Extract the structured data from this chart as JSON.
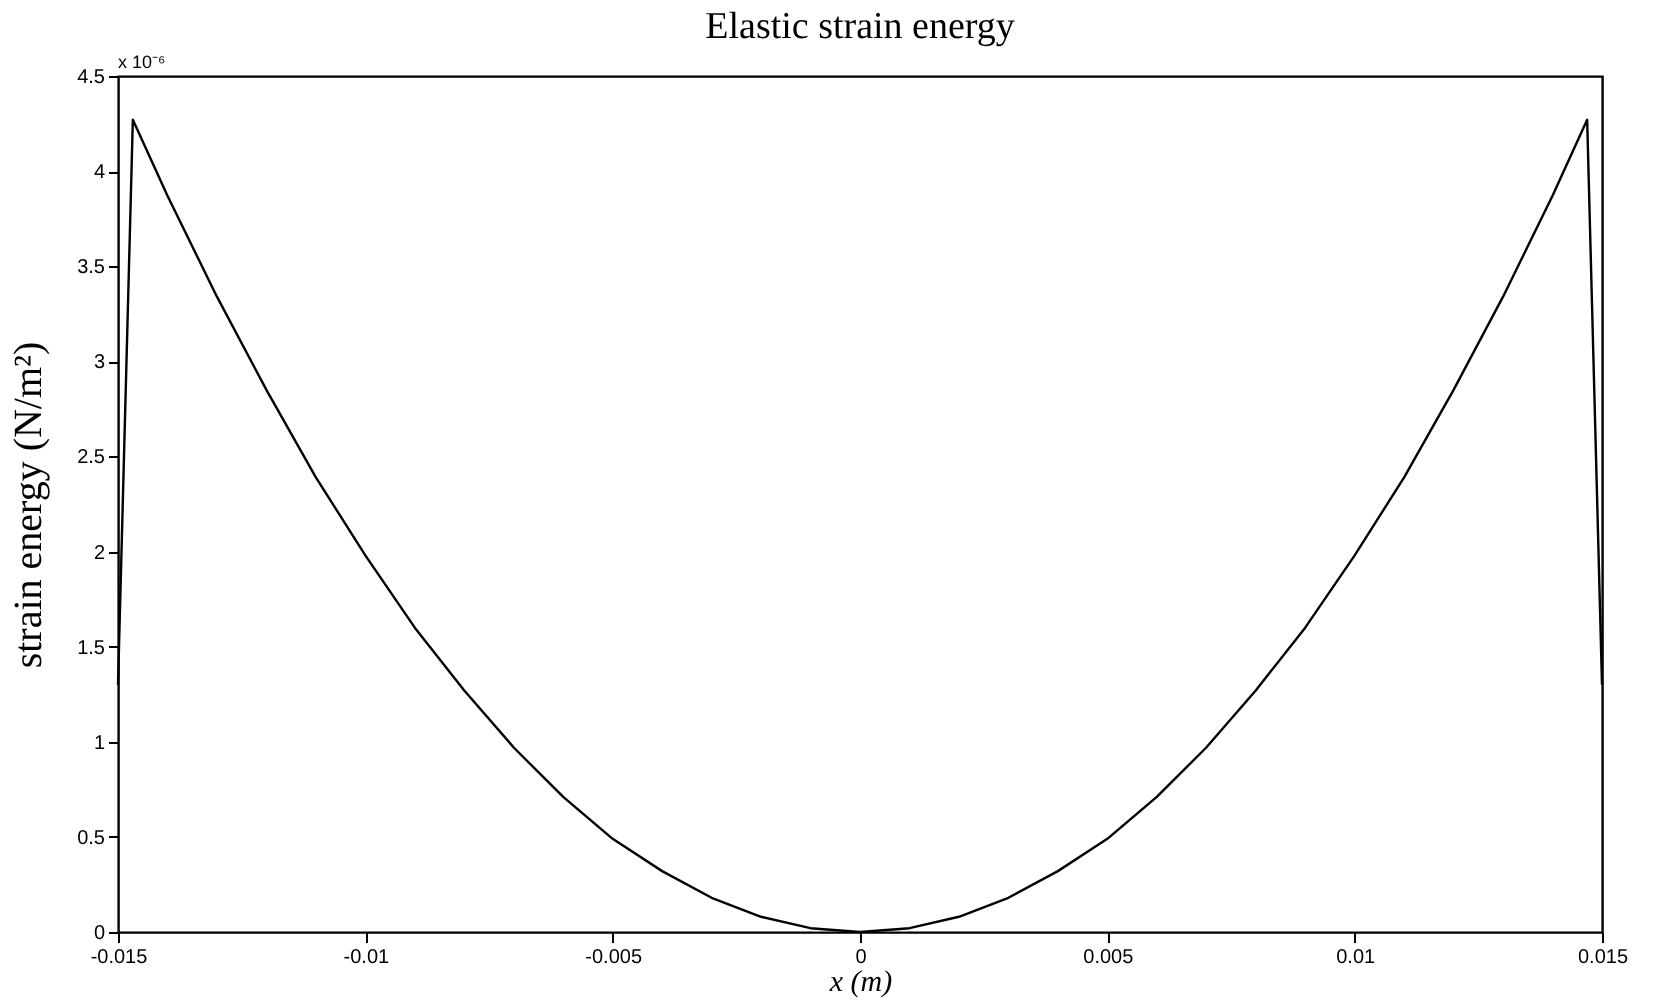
{
  "chart_data": {
    "type": "line",
    "title": "Elastic strain energy",
    "xlabel": "x (m)",
    "ylabel": "strain energy (N/m²)",
    "annotations": [
      "x 10⁻⁶"
    ],
    "x": [
      -0.015,
      -0.0147,
      -0.014,
      -0.013,
      -0.012,
      -0.011,
      -0.01,
      -0.009,
      -0.008,
      -0.007,
      -0.006,
      -0.005,
      -0.004,
      -0.003,
      -0.002,
      -0.001,
      0,
      0.001,
      0.002,
      0.003,
      0.004,
      0.005,
      0.006,
      0.007,
      0.008,
      0.009,
      0.01,
      0.011,
      0.012,
      0.013,
      0.014,
      0.0147,
      0.015
    ],
    "series": [
      {
        "color": "#000000",
        "values": [
          1.3,
          4.27,
          3.87,
          3.34,
          2.85,
          2.39,
          1.98,
          1.6,
          1.27,
          0.97,
          0.71,
          0.49,
          0.32,
          0.18,
          0.08,
          0.02,
          0,
          0.02,
          0.08,
          0.18,
          0.32,
          0.49,
          0.71,
          0.97,
          1.27,
          1.6,
          1.98,
          2.39,
          2.85,
          3.34,
          3.87,
          4.27,
          1.3
        ]
      }
    ],
    "xlim": [
      -0.015,
      0.015
    ],
    "xticks": [
      -0.015,
      -0.01,
      -0.005,
      0,
      0.005,
      0.01,
      0.015
    ],
    "ylim": [
      0,
      4.5
    ],
    "yticks": [
      0,
      0.5,
      1,
      1.5,
      2,
      2.5,
      3,
      3.5,
      4,
      4.5
    ],
    "grid": false,
    "legend": false,
    "line_style": "solid",
    "marker": "none"
  }
}
